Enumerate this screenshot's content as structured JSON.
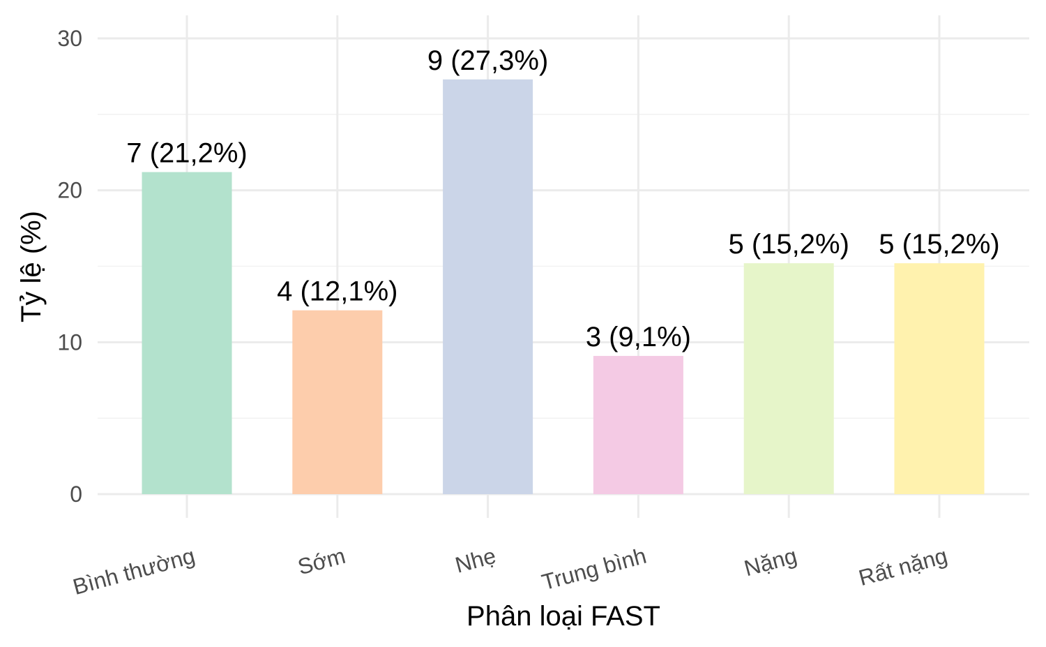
{
  "chart_data": {
    "type": "bar",
    "title": "",
    "xlabel": "Phân loại FAST",
    "ylabel": "Tỷ lệ (%)",
    "categories": [
      "Bình thường",
      "Sớm",
      "Nhẹ",
      "Trung bình",
      "Nặng",
      "Rất nặng"
    ],
    "values": [
      21.2,
      12.1,
      27.3,
      9.1,
      15.2,
      15.2
    ],
    "counts": [
      7,
      4,
      9,
      3,
      5,
      5
    ],
    "data_labels": [
      "7 (21,2%)",
      "4 (12,1%)",
      "9 (27,3%)",
      "3 (9,1%)",
      "5 (15,2%)",
      "5 (15,2%)"
    ],
    "colors": [
      "#b3e2cd",
      "#fdcdac",
      "#cbd5e8",
      "#f4cae4",
      "#e6f5c9",
      "#fff2ae"
    ],
    "ylim": [
      0,
      30
    ],
    "yticks": [
      0,
      10,
      20,
      30
    ],
    "ytick_labels": [
      "0",
      "10",
      "20",
      "30"
    ],
    "grid": true,
    "legend": "none"
  }
}
